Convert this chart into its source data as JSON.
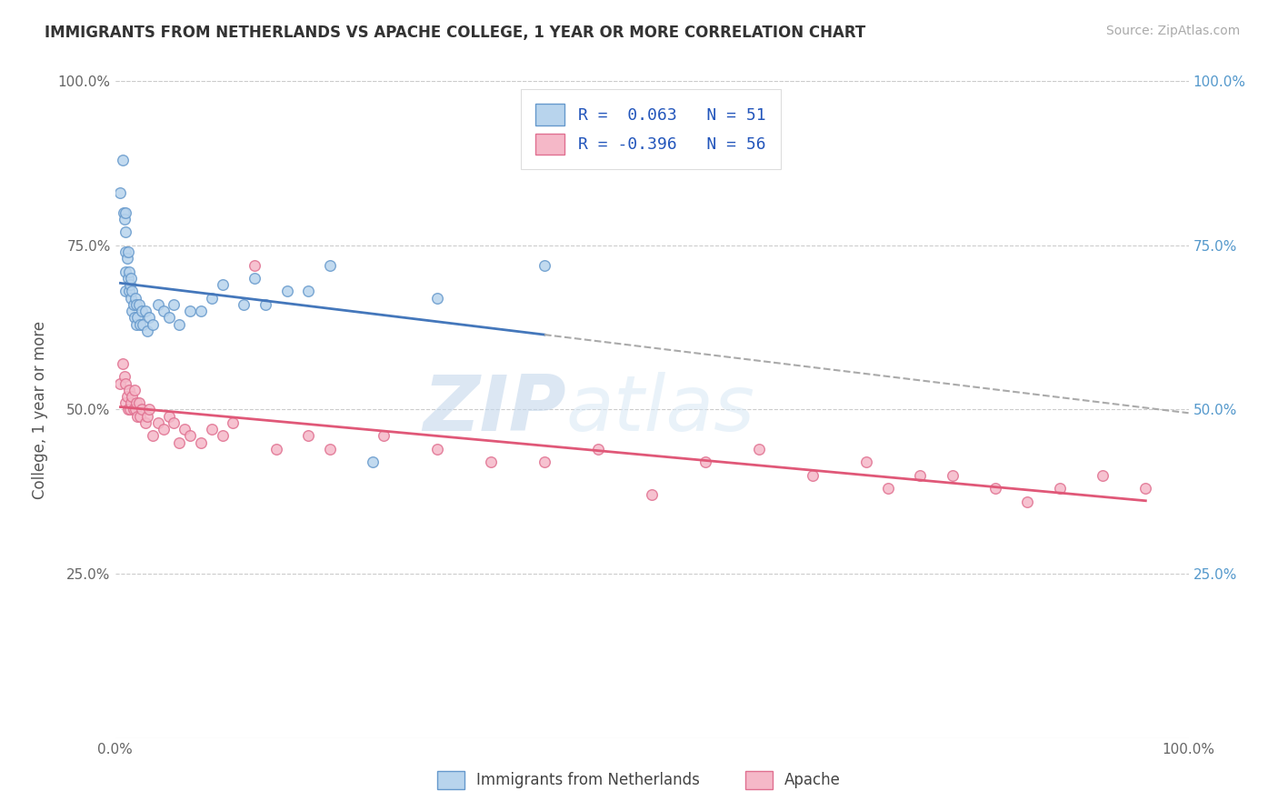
{
  "title": "IMMIGRANTS FROM NETHERLANDS VS APACHE COLLEGE, 1 YEAR OR MORE CORRELATION CHART",
  "source_text": "Source: ZipAtlas.com",
  "ylabel": "College, 1 year or more",
  "xlim": [
    0.0,
    1.0
  ],
  "ylim": [
    0.0,
    1.0
  ],
  "ytick_positions": [
    0.25,
    0.5,
    0.75,
    1.0
  ],
  "ytick_labels": [
    "25.0%",
    "50.0%",
    "75.0%",
    "100.0%"
  ],
  "xtick_positions": [
    0.0,
    1.0
  ],
  "xtick_labels": [
    "0.0%",
    "100.0%"
  ],
  "background_color": "#ffffff",
  "grid_color": "#cccccc",
  "watermark_zip": "ZIP",
  "watermark_atlas": "atlas",
  "series": [
    {
      "name": "Immigrants from Netherlands",
      "R": 0.063,
      "N": 51,
      "face_color": "#b8d4ed",
      "edge_color": "#6699cc",
      "size": 70,
      "trend_color": "#4477bb",
      "x": [
        0.005,
        0.007,
        0.008,
        0.009,
        0.01,
        0.01,
        0.01,
        0.01,
        0.01,
        0.011,
        0.012,
        0.012,
        0.013,
        0.013,
        0.014,
        0.015,
        0.015,
        0.016,
        0.016,
        0.017,
        0.018,
        0.019,
        0.02,
        0.02,
        0.021,
        0.022,
        0.023,
        0.025,
        0.026,
        0.028,
        0.03,
        0.032,
        0.035,
        0.04,
        0.045,
        0.05,
        0.055,
        0.06,
        0.07,
        0.08,
        0.09,
        0.1,
        0.12,
        0.13,
        0.14,
        0.16,
        0.18,
        0.2,
        0.24,
        0.3,
        0.4
      ],
      "y": [
        0.83,
        0.88,
        0.8,
        0.79,
        0.68,
        0.71,
        0.74,
        0.77,
        0.8,
        0.73,
        0.7,
        0.74,
        0.68,
        0.71,
        0.69,
        0.67,
        0.7,
        0.65,
        0.68,
        0.66,
        0.64,
        0.67,
        0.63,
        0.66,
        0.64,
        0.66,
        0.63,
        0.65,
        0.63,
        0.65,
        0.62,
        0.64,
        0.63,
        0.66,
        0.65,
        0.64,
        0.66,
        0.63,
        0.65,
        0.65,
        0.67,
        0.69,
        0.66,
        0.7,
        0.66,
        0.68,
        0.68,
        0.72,
        0.42,
        0.67,
        0.72
      ]
    },
    {
      "name": "Apache",
      "R": -0.396,
      "N": 56,
      "face_color": "#f5b8c8",
      "edge_color": "#e07090",
      "size": 70,
      "trend_color": "#e05878",
      "x": [
        0.005,
        0.007,
        0.009,
        0.01,
        0.01,
        0.011,
        0.012,
        0.013,
        0.014,
        0.015,
        0.016,
        0.017,
        0.018,
        0.019,
        0.02,
        0.021,
        0.022,
        0.023,
        0.025,
        0.028,
        0.03,
        0.032,
        0.035,
        0.04,
        0.045,
        0.05,
        0.055,
        0.06,
        0.065,
        0.07,
        0.08,
        0.09,
        0.1,
        0.11,
        0.13,
        0.15,
        0.18,
        0.2,
        0.25,
        0.3,
        0.35,
        0.4,
        0.45,
        0.5,
        0.55,
        0.6,
        0.65,
        0.7,
        0.72,
        0.75,
        0.78,
        0.82,
        0.85,
        0.88,
        0.92,
        0.96
      ],
      "y": [
        0.54,
        0.57,
        0.55,
        0.51,
        0.54,
        0.52,
        0.5,
        0.53,
        0.5,
        0.51,
        0.52,
        0.5,
        0.53,
        0.5,
        0.51,
        0.49,
        0.51,
        0.49,
        0.5,
        0.48,
        0.49,
        0.5,
        0.46,
        0.48,
        0.47,
        0.49,
        0.48,
        0.45,
        0.47,
        0.46,
        0.45,
        0.47,
        0.46,
        0.48,
        0.72,
        0.44,
        0.46,
        0.44,
        0.46,
        0.44,
        0.42,
        0.42,
        0.44,
        0.37,
        0.42,
        0.44,
        0.4,
        0.42,
        0.38,
        0.4,
        0.4,
        0.38,
        0.36,
        0.38,
        0.4,
        0.38
      ]
    }
  ],
  "right_ytick_color": "#5599cc",
  "legend_R_color": "#2255bb"
}
